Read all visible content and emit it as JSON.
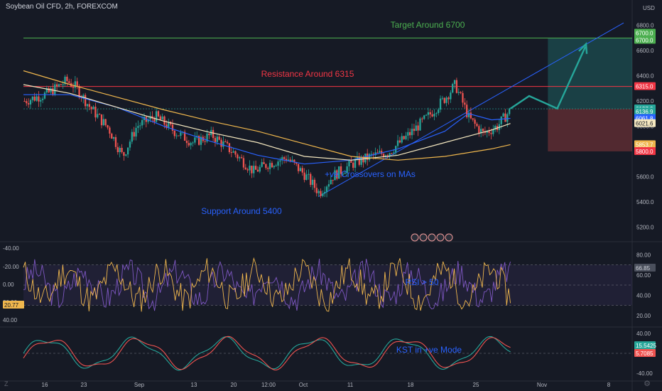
{
  "header": {
    "symbol": "Soybean Oil CFD",
    "interval": "2h",
    "source": "FOREXCOM",
    "currency": "USD"
  },
  "annotations": {
    "target": "Target Around 6700",
    "resistance": "Resistance Around 6315",
    "support": "Support Around 5400",
    "crossover": "+ve Crossovers on MAs",
    "rsi": "RSI > 50",
    "kst": "KST in +ve Mode"
  },
  "colors": {
    "background": "#161a25",
    "up": "#26a69a",
    "down": "#ef5350",
    "target": "#4caf50",
    "resistance": "#f23645",
    "support_text": "#2962ff",
    "ma_blue": "#2962ff",
    "ma_yellow": "#f0b74d",
    "ma_cream": "#f5e8c0",
    "rsi_purple": "#7e57c2",
    "rsi_yellow": "#f0b74d",
    "kst_green": "#26a69a",
    "kst_red": "#ef5350"
  },
  "corner_labels": {
    "bottom_left": "Z",
    "bottom_right": "⚙"
  },
  "icons": [
    "event-icon",
    "event-icon",
    "event-icon",
    "event-icon",
    "event-icon"
  ],
  "chart_data": [
    {
      "type": "candlestick",
      "title": "Soybean Oil CFD, 2h, FOREXCOM",
      "x_ticks": [
        "16",
        "23",
        "Sep",
        "13",
        "20",
        "12:00",
        "Oct",
        "11",
        "18",
        "25",
        "Nov",
        "8"
      ],
      "y_ticks": [
        5200.0,
        5400.0,
        5600.0,
        5800.0,
        6000.0,
        6200.0,
        6400.0,
        6600.0,
        6800.0
      ],
      "ylim": [
        5100,
        6900
      ],
      "levels": [
        {
          "name": "Target",
          "value": 6700.0,
          "label": "6700.0"
        },
        {
          "name": "Resistance",
          "value": 6315.0,
          "label": "6315.0"
        },
        {
          "name": "Stop",
          "value": 5800.0,
          "label": "5800.0"
        }
      ],
      "price_labels": [
        {
          "value": 6700.0,
          "label": "6700.0",
          "color": "#4caf50"
        },
        {
          "value": 6137.9,
          "label": "6137.9",
          "color": "#26a69a"
        },
        {
          "value": 6136.9,
          "label": "6136.9",
          "color": "#26a69a"
        },
        {
          "value": 6061.8,
          "label": "6061.8",
          "color": "#2962ff"
        },
        {
          "value": 6021.6,
          "label": "6021.6",
          "color": "#f5e8c0"
        },
        {
          "value": 5853.7,
          "label": "5853.7",
          "color": "#f0b74d"
        }
      ],
      "price_path": [
        {
          "x": 0,
          "y": 6200
        },
        {
          "x": 5,
          "y": 6260
        },
        {
          "x": 9,
          "y": 6360
        },
        {
          "x": 11,
          "y": 6310
        },
        {
          "x": 14,
          "y": 6150
        },
        {
          "x": 18,
          "y": 5980
        },
        {
          "x": 21,
          "y": 5760
        },
        {
          "x": 24,
          "y": 6000
        },
        {
          "x": 28,
          "y": 6080
        },
        {
          "x": 32,
          "y": 5960
        },
        {
          "x": 36,
          "y": 5870
        },
        {
          "x": 40,
          "y": 5930
        },
        {
          "x": 45,
          "y": 5780
        },
        {
          "x": 49,
          "y": 5640
        },
        {
          "x": 52,
          "y": 5700
        },
        {
          "x": 56,
          "y": 5750
        },
        {
          "x": 60,
          "y": 5610
        },
        {
          "x": 63,
          "y": 5470
        },
        {
          "x": 66,
          "y": 5610
        },
        {
          "x": 70,
          "y": 5700
        },
        {
          "x": 74,
          "y": 5760
        },
        {
          "x": 78,
          "y": 5800
        },
        {
          "x": 82,
          "y": 5930
        },
        {
          "x": 86,
          "y": 6070
        },
        {
          "x": 90,
          "y": 6230
        },
        {
          "x": 92,
          "y": 6330
        },
        {
          "x": 95,
          "y": 6060
        },
        {
          "x": 98,
          "y": 5940
        },
        {
          "x": 101,
          "y": 6000
        },
        {
          "x": 104,
          "y": 6137.9
        }
      ],
      "moving_averages": [
        {
          "color": "#2962ff",
          "values": [
            [
              0,
              6250
            ],
            [
              10,
              6250
            ],
            [
              20,
              6150
            ],
            [
              30,
              6000
            ],
            [
              40,
              5880
            ],
            [
              50,
              5770
            ],
            [
              60,
              5700
            ],
            [
              70,
              5730
            ],
            [
              80,
              5820
            ],
            [
              90,
              5960
            ],
            [
              95,
              6100
            ],
            [
              100,
              6050
            ],
            [
              104,
              6061.8
            ]
          ]
        },
        {
          "color": "#f5e8c0",
          "values": [
            [
              0,
              6330
            ],
            [
              10,
              6260
            ],
            [
              20,
              6150
            ],
            [
              30,
              6040
            ],
            [
              40,
              5950
            ],
            [
              50,
              5870
            ],
            [
              60,
              5760
            ],
            [
              70,
              5730
            ],
            [
              80,
              5770
            ],
            [
              90,
              5870
            ],
            [
              100,
              5970
            ],
            [
              104,
              6021.6
            ]
          ]
        },
        {
          "color": "#f0b74d",
          "values": [
            [
              0,
              6440
            ],
            [
              10,
              6330
            ],
            [
              20,
              6230
            ],
            [
              30,
              6130
            ],
            [
              40,
              6040
            ],
            [
              50,
              5960
            ],
            [
              60,
              5860
            ],
            [
              70,
              5760
            ],
            [
              80,
              5730
            ],
            [
              90,
              5760
            ],
            [
              100,
              5820
            ],
            [
              104,
              5853.7
            ]
          ]
        }
      ],
      "projection": [
        {
          "x": 104,
          "y": 6140
        },
        {
          "x": 108,
          "y": 6240
        },
        {
          "x": 114,
          "y": 6140
        },
        {
          "x": 120,
          "y": 6630
        }
      ]
    },
    {
      "type": "line",
      "title": "RSI / Oscillator",
      "left_ticks": [
        "-40.00",
        "-20.00",
        "0.00",
        "20.00",
        "40.00"
      ],
      "right_ticks": [
        80.0,
        60.0,
        40.0,
        20.0
      ],
      "ylim": [
        10,
        90
      ],
      "levels": [
        70,
        50,
        30
      ],
      "value_labels": [
        {
          "side": "right",
          "value": 66.85,
          "label": "66.85"
        },
        {
          "side": "left",
          "value": 20.77,
          "label": "20.77"
        }
      ],
      "series": [
        {
          "color": "#7e57c2",
          "amplitude": 22,
          "center": 50,
          "seed": 3
        },
        {
          "color": "#f0b74d",
          "amplitude": 24,
          "center": 50,
          "seed": 11
        }
      ]
    },
    {
      "type": "line",
      "title": "KST",
      "right_ticks": [
        40.0,
        -40.0
      ],
      "ylim": [
        -50,
        50
      ],
      "value_labels": [
        {
          "value": 15.5425,
          "label": "15.5425",
          "color": "#26a69a"
        },
        {
          "value": 5.7085,
          "label": "5.7085",
          "color": "#ef5350"
        }
      ],
      "series": [
        {
          "color": "#26a69a"
        },
        {
          "color": "#ef5350"
        }
      ]
    }
  ]
}
